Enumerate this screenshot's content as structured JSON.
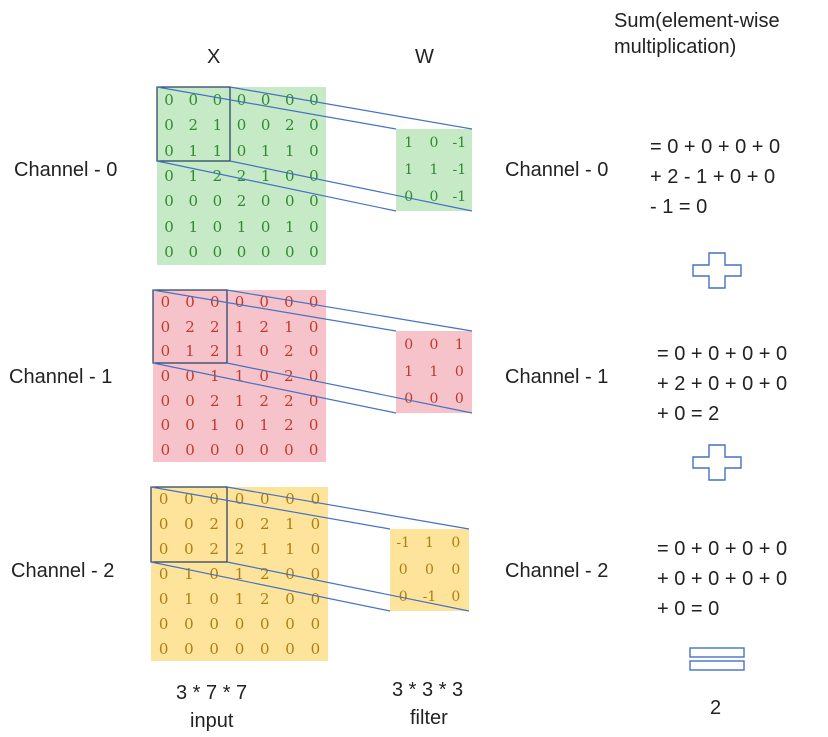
{
  "headers": {
    "x": "X",
    "w": "W",
    "sum": "Sum(element-wise multiplication)"
  },
  "colors": {
    "green_bg": "#c6e9c6",
    "green_text": "#2e8b2e",
    "red_bg": "#f7c3ca",
    "red_text": "#c0392b",
    "yellow_bg": "#fde49a",
    "yellow_text": "#b07d12",
    "connector": "#4472c4",
    "window": "#1f3a60"
  },
  "channels": [
    {
      "label": "Channel - 0",
      "input": [
        [
          "0",
          "0",
          "0",
          "0",
          "0",
          "0",
          "0"
        ],
        [
          "0",
          "2",
          "1",
          "0",
          "0",
          "2",
          "0"
        ],
        [
          "0",
          "1",
          "1",
          "0",
          "1",
          "1",
          "0"
        ],
        [
          "0",
          "1",
          "2",
          "2",
          "1",
          "0",
          "0"
        ],
        [
          "0",
          "0",
          "0",
          "2",
          "0",
          "0",
          "0"
        ],
        [
          "0",
          "1",
          "0",
          "1",
          "0",
          "1",
          "0"
        ],
        [
          "0",
          "0",
          "0",
          "0",
          "0",
          "0",
          "0"
        ]
      ],
      "filter": [
        [
          "1",
          "0",
          "-1"
        ],
        [
          "1",
          "1",
          "-1"
        ],
        [
          "0",
          "0",
          "-1"
        ]
      ],
      "sum_lines": [
        "= 0 + 0 + 0 + 0",
        "+ 2 - 1 + 0 + 0",
        "- 1 = 0"
      ]
    },
    {
      "label": "Channel - 1",
      "input": [
        [
          "0",
          "0",
          "0",
          "0",
          "0",
          "0",
          "0"
        ],
        [
          "0",
          "2",
          "2",
          "1",
          "2",
          "1",
          "0"
        ],
        [
          "0",
          "1",
          "2",
          "1",
          "0",
          "2",
          "0"
        ],
        [
          "0",
          "0",
          "1",
          "1",
          "0",
          "2",
          "0"
        ],
        [
          "0",
          "0",
          "2",
          "1",
          "2",
          "2",
          "0"
        ],
        [
          "0",
          "0",
          "1",
          "0",
          "1",
          "2",
          "0"
        ],
        [
          "0",
          "0",
          "0",
          "0",
          "0",
          "0",
          "0"
        ]
      ],
      "filter": [
        [
          "0",
          "0",
          "1"
        ],
        [
          "1",
          "1",
          "0"
        ],
        [
          "0",
          "0",
          "0"
        ]
      ],
      "sum_lines": [
        "= 0 + 0 + 0 + 0",
        "+ 2 + 0 + 0 + 0",
        "+ 0 = 2"
      ]
    },
    {
      "label": "Channel - 2",
      "input": [
        [
          "0",
          "0",
          "0",
          "0",
          "0",
          "0",
          "0"
        ],
        [
          "0",
          "0",
          "2",
          "0",
          "2",
          "1",
          "0"
        ],
        [
          "0",
          "0",
          "2",
          "2",
          "1",
          "1",
          "0"
        ],
        [
          "0",
          "1",
          "0",
          "1",
          "2",
          "0",
          "0"
        ],
        [
          "0",
          "1",
          "0",
          "1",
          "2",
          "0",
          "0"
        ],
        [
          "0",
          "0",
          "0",
          "0",
          "0",
          "0",
          "0"
        ],
        [
          "0",
          "0",
          "0",
          "0",
          "0",
          "0",
          "0"
        ]
      ],
      "filter": [
        [
          "-1",
          "1",
          "0"
        ],
        [
          "0",
          "0",
          "0"
        ],
        [
          "0",
          "-1",
          "0"
        ]
      ],
      "sum_lines": [
        "= 0 + 0 + 0 + 0",
        "+ 0 + 0 + 0 + 0",
        "+ 0 = 0"
      ]
    }
  ],
  "footer": {
    "input_dims": "3 * 7 * 7",
    "input_word": "input",
    "filter_dims": "3 * 3 * 3",
    "filter_word": "filter",
    "result": "2"
  }
}
